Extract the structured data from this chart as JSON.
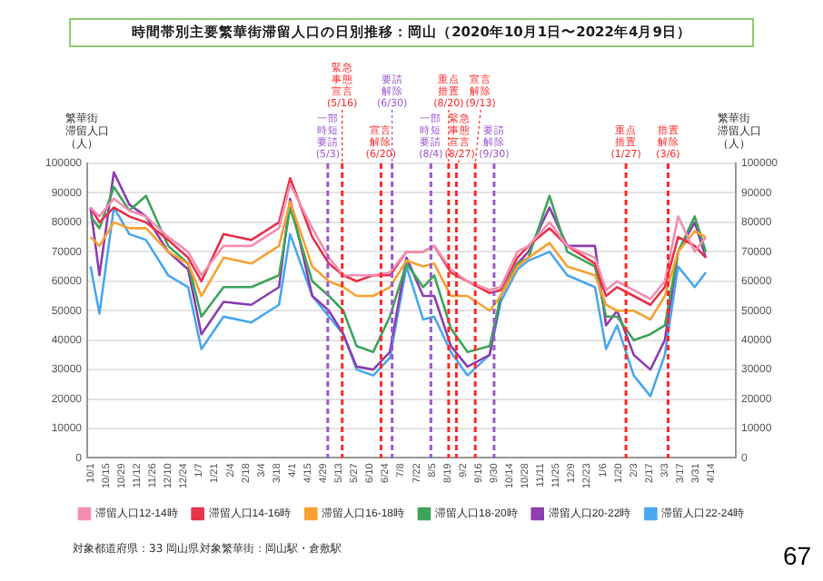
{
  "chart_data": {
    "type": "line",
    "title": "時間帯別主要繁華街滞留人口の日別推移：岡山（2020年10月1日〜2022年4月9日）",
    "ylabel": "繁華街滞留人口（人）",
    "y2label": "繁華街滞留人口（人）",
    "x": [
      "2020-10-01",
      "2020-10-09",
      "2020-10-22",
      "2020-11-05",
      "2020-11-20",
      "2020-12-10",
      "2020-12-28",
      "2021-01-09",
      "2021-01-29",
      "2021-02-23",
      "2021-03-20",
      "2021-03-30",
      "2021-04-19",
      "2021-05-04",
      "2021-05-17",
      "2021-05-29",
      "2021-06-13",
      "2021-06-28",
      "2021-07-13",
      "2021-07-28",
      "2021-08-07",
      "2021-08-22",
      "2021-09-06",
      "2021-09-26",
      "2021-10-06",
      "2021-10-21",
      "2021-10-31",
      "2021-11-19",
      "2021-12-05",
      "2021-12-30",
      "2022-01-09",
      "2022-01-19",
      "2022-02-03",
      "2022-02-18",
      "2022-03-03",
      "2022-03-15",
      "2022-03-30",
      "2022-04-09"
    ],
    "series": [
      {
        "name": "滞留人口12-14時",
        "color": "#f48fb1",
        "values": [
          85000,
          82000,
          88000,
          84000,
          82000,
          75000,
          70000,
          62000,
          72000,
          72000,
          78000,
          93000,
          78000,
          68000,
          62000,
          62000,
          62000,
          63000,
          70000,
          70000,
          72000,
          64000,
          60000,
          57000,
          58000,
          70000,
          72000,
          80000,
          72000,
          68000,
          57000,
          60000,
          57000,
          54000,
          60000,
          82000,
          70000,
          75000
        ]
      },
      {
        "name": "滞留人口14-16時",
        "color": "#e8334a",
        "values": [
          85000,
          80000,
          85000,
          82000,
          80000,
          74000,
          68000,
          60000,
          76000,
          74000,
          80000,
          95000,
          75000,
          66000,
          62000,
          60000,
          62000,
          62000,
          70000,
          70000,
          72000,
          63000,
          60000,
          56000,
          57000,
          68000,
          72000,
          78000,
          72000,
          66000,
          55000,
          58000,
          55000,
          52000,
          58000,
          75000,
          72000,
          68000
        ]
      },
      {
        "name": "滞留人口16-18時",
        "color": "#f7a233",
        "values": [
          75000,
          72000,
          80000,
          78000,
          78000,
          70000,
          66000,
          55000,
          68000,
          66000,
          72000,
          87000,
          65000,
          60000,
          58000,
          55000,
          55000,
          58000,
          67000,
          65000,
          66000,
          55000,
          55000,
          50000,
          55000,
          65000,
          68000,
          73000,
          65000,
          62000,
          52000,
          50000,
          50000,
          47000,
          55000,
          70000,
          77000,
          75000
        ]
      },
      {
        "name": "滞留人口18-20時",
        "color": "#3fa55b",
        "values": [
          82000,
          78000,
          92000,
          84000,
          89000,
          72000,
          66000,
          48000,
          58000,
          58000,
          62000,
          85000,
          60000,
          55000,
          50000,
          38000,
          36000,
          48000,
          66000,
          58000,
          62000,
          44000,
          36000,
          38000,
          55000,
          66000,
          68000,
          89000,
          70000,
          65000,
          48000,
          48000,
          40000,
          42000,
          45000,
          70000,
          82000,
          70000
        ]
      },
      {
        "name": "滞留人口20-22時",
        "color": "#8e3fb0",
        "values": [
          85000,
          62000,
          97000,
          86000,
          82000,
          70000,
          64000,
          42000,
          53000,
          52000,
          58000,
          88000,
          55000,
          50000,
          42000,
          31000,
          30000,
          36000,
          68000,
          55000,
          55000,
          38000,
          31000,
          35000,
          55000,
          66000,
          70000,
          85000,
          72000,
          72000,
          45000,
          50000,
          35000,
          30000,
          40000,
          70000,
          80000,
          68000
        ]
      },
      {
        "name": "滞留人口22-24時",
        "color": "#4aa8f0",
        "values": [
          65000,
          49000,
          85000,
          76000,
          74000,
          62000,
          58000,
          37000,
          48000,
          46000,
          52000,
          76000,
          55000,
          48000,
          42000,
          30000,
          28000,
          34000,
          65000,
          47000,
          48000,
          36000,
          28000,
          35000,
          53000,
          64000,
          67000,
          70000,
          62000,
          58000,
          37000,
          45000,
          28000,
          21000,
          35000,
          65000,
          58000,
          63000
        ]
      }
    ],
    "xlim": [
      "2020-09-28",
      "2022-05-06"
    ],
    "xticks": [
      {
        "value": "2020-10-01",
        "label": "10/1"
      },
      {
        "value": "2020-10-15",
        "label": "10/15"
      },
      {
        "value": "2020-10-29",
        "label": "10/29"
      },
      {
        "value": "2020-11-12",
        "label": "11/12"
      },
      {
        "value": "2020-11-26",
        "label": "11/26"
      },
      {
        "value": "2020-12-10",
        "label": "12/10"
      },
      {
        "value": "2020-12-24",
        "label": "12/24"
      },
      {
        "value": "2021-01-07",
        "label": "1/7"
      },
      {
        "value": "2021-01-21",
        "label": "1/21"
      },
      {
        "value": "2021-02-04",
        "label": "2/4"
      },
      {
        "value": "2021-02-18",
        "label": "2/18"
      },
      {
        "value": "2021-03-04",
        "label": "3/4"
      },
      {
        "value": "2021-03-18",
        "label": "3/18"
      },
      {
        "value": "2021-04-01",
        "label": "4/1"
      },
      {
        "value": "2021-04-15",
        "label": "4/15"
      },
      {
        "value": "2021-04-29",
        "label": "4/29"
      },
      {
        "value": "2021-05-13",
        "label": "5/13"
      },
      {
        "value": "2021-05-27",
        "label": "5/27"
      },
      {
        "value": "2021-06-10",
        "label": "6/10"
      },
      {
        "value": "2021-06-24",
        "label": "6/24"
      },
      {
        "value": "2021-07-08",
        "label": "7/8"
      },
      {
        "value": "2021-07-22",
        "label": "7/22"
      },
      {
        "value": "2021-08-05",
        "label": "8/5"
      },
      {
        "value": "2021-08-19",
        "label": "8/19"
      },
      {
        "value": "2021-09-02",
        "label": "9/2"
      },
      {
        "value": "2021-09-16",
        "label": "9/16"
      },
      {
        "value": "2021-09-30",
        "label": "9/30"
      },
      {
        "value": "2021-10-14",
        "label": "10/14"
      },
      {
        "value": "2021-10-28",
        "label": "10/28"
      },
      {
        "value": "2021-11-11",
        "label": "11/11"
      },
      {
        "value": "2021-11-25",
        "label": "11/25"
      },
      {
        "value": "2021-12-09",
        "label": "12/9"
      },
      {
        "value": "2021-12-23",
        "label": "12/23"
      },
      {
        "value": "2022-01-06",
        "label": "1/6"
      },
      {
        "value": "2022-01-20",
        "label": "1/20"
      },
      {
        "value": "2022-02-03",
        "label": "2/3"
      },
      {
        "value": "2022-02-17",
        "label": "2/17"
      },
      {
        "value": "2022-03-03",
        "label": "3/3"
      },
      {
        "value": "2022-03-17",
        "label": "3/17"
      },
      {
        "value": "2022-03-31",
        "label": "3/31"
      },
      {
        "value": "2022-04-14",
        "label": "4/14"
      }
    ],
    "ylim": [
      0,
      100000
    ],
    "yticks": [
      0,
      10000,
      20000,
      30000,
      40000,
      50000,
      60000,
      70000,
      80000,
      90000,
      100000
    ],
    "y2lim": [
      0,
      100000
    ],
    "y2ticks": [
      0,
      10000,
      20000,
      30000,
      40000,
      50000,
      60000,
      70000,
      80000,
      90000,
      100000
    ],
    "ref_lines": [
      {
        "axis": "x",
        "value": "2021-05-03",
        "label": "一部時短要請(5/3)",
        "color": "#9b59d0",
        "line_style": "dashed"
      },
      {
        "axis": "x",
        "value": "2021-05-16",
        "label": "緊急事態宣言(5/16)",
        "color": "#ff2a2a",
        "line_style": "dashed"
      },
      {
        "axis": "x",
        "value": "2021-06-20",
        "label": "宣言解除(6/20)",
        "color": "#ff2a2a",
        "line_style": "dashed"
      },
      {
        "axis": "x",
        "value": "2021-06-30",
        "label": "要請解除(6/30)",
        "color": "#9b59d0",
        "line_style": "dashed"
      },
      {
        "axis": "x",
        "value": "2021-08-04",
        "label": "一部時短要請(8/4)",
        "color": "#9b59d0",
        "line_style": "dashed"
      },
      {
        "axis": "x",
        "value": "2021-08-20",
        "label": "重点措置(8/20)",
        "color": "#ff2a2a",
        "line_style": "dashed"
      },
      {
        "axis": "x",
        "value": "2021-08-27",
        "label": "緊急事態宣言(8/27)",
        "color": "#ff2a2a",
        "line_style": "dashed"
      },
      {
        "axis": "x",
        "value": "2021-09-13",
        "label": "宣言解除(9/13)",
        "color": "#ff2a2a",
        "line_style": "dashed"
      },
      {
        "axis": "x",
        "value": "2021-09-30",
        "label": "要請解除(9/30)",
        "color": "#9b59d0",
        "line_style": "dashed"
      },
      {
        "axis": "x",
        "value": "2022-01-27",
        "label": "重点措置(1/27)",
        "color": "#ff2a2a",
        "line_style": "dashed"
      },
      {
        "axis": "x",
        "value": "2022-03-06",
        "label": "措置解除(3/6)",
        "color": "#ff2a2a",
        "line_style": "dashed"
      }
    ],
    "annotations": [
      "対象都道府県：33 岡山県",
      "対象繁華街：岡山駅・倉敷駅",
      "67"
    ],
    "grid": "y",
    "legend": "bottom",
    "marker": "none",
    "line_style": "solid"
  }
}
